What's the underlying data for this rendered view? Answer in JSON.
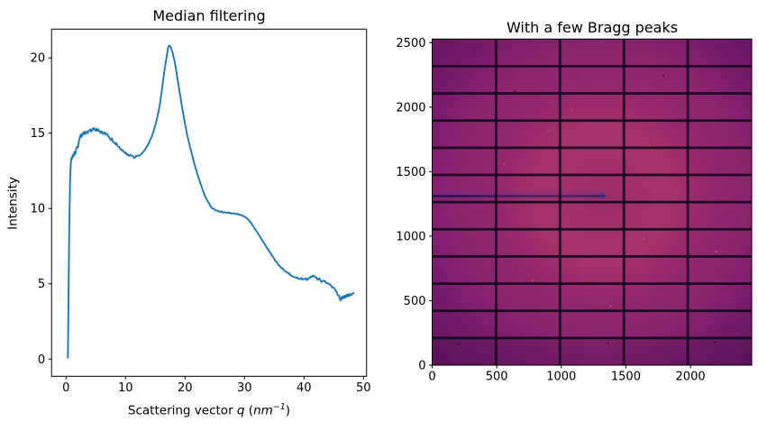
{
  "figure": {
    "background": "#ffffff"
  },
  "chart_data": [
    {
      "id": "median_filtering_curve",
      "type": "line",
      "title": "Median filtering",
      "ylabel": "Intensity",
      "xlabel_plain": "Scattering vector q (nm⁻¹)",
      "xlabel_parts": {
        "prefix": "Scattering vector ",
        "q": "q",
        "open": " (",
        "unit": "nm",
        "exp": "−1",
        "close": ")"
      },
      "xlim": [
        -2.44,
        50.52
      ],
      "ylim": [
        -1.14,
        21.91
      ],
      "xticks": [
        0,
        10,
        20,
        30,
        40,
        50
      ],
      "yticks": [
        0,
        5,
        10,
        15,
        20
      ],
      "line_color": "#1f77b4",
      "line_width": 1.9,
      "grid": false,
      "points": [
        [
          0.3,
          0.05
        ],
        [
          0.35,
          1.6
        ],
        [
          0.4,
          3.6
        ],
        [
          0.45,
          5.6
        ],
        [
          0.5,
          7.3
        ],
        [
          0.55,
          8.9
        ],
        [
          0.6,
          10.2
        ],
        [
          0.65,
          11.3
        ],
        [
          0.7,
          12.2
        ],
        [
          0.8,
          13.0
        ],
        [
          0.9,
          13.35
        ],
        [
          1.0,
          13.3
        ],
        [
          1.1,
          13.55
        ],
        [
          1.25,
          13.45
        ],
        [
          1.4,
          13.75
        ],
        [
          1.55,
          13.6
        ],
        [
          1.7,
          13.95
        ],
        [
          1.85,
          14.1
        ],
        [
          2.0,
          14.05
        ],
        [
          2.15,
          14.45
        ],
        [
          2.3,
          14.7
        ],
        [
          2.45,
          14.9
        ],
        [
          2.6,
          14.75
        ],
        [
          2.75,
          15.0
        ],
        [
          2.9,
          14.9
        ],
        [
          3.05,
          15.1
        ],
        [
          3.25,
          14.95
        ],
        [
          3.45,
          15.1
        ],
        [
          3.65,
          15.0
        ],
        [
          3.85,
          15.15
        ],
        [
          4.05,
          15.25
        ],
        [
          4.25,
          15.1
        ],
        [
          4.45,
          15.3
        ],
        [
          4.65,
          15.35
        ],
        [
          4.85,
          15.2
        ],
        [
          5.05,
          15.3
        ],
        [
          5.25,
          15.15
        ],
        [
          5.45,
          15.25
        ],
        [
          5.65,
          15.1
        ],
        [
          5.85,
          15.0
        ],
        [
          6.05,
          15.1
        ],
        [
          6.25,
          14.95
        ],
        [
          6.45,
          15.05
        ],
        [
          6.65,
          14.9
        ],
        [
          6.85,
          14.95
        ],
        [
          7.05,
          14.85
        ],
        [
          7.25,
          14.75
        ],
        [
          7.45,
          14.6
        ],
        [
          7.65,
          14.65
        ],
        [
          7.85,
          14.45
        ],
        [
          8.05,
          14.4
        ],
        [
          8.25,
          14.3
        ],
        [
          8.45,
          14.35
        ],
        [
          8.65,
          14.15
        ],
        [
          8.85,
          14.1
        ],
        [
          9.05,
          14.0
        ],
        [
          9.25,
          13.95
        ],
        [
          9.45,
          13.85
        ],
        [
          9.65,
          13.8
        ],
        [
          9.85,
          13.75
        ],
        [
          10.1,
          13.7
        ],
        [
          10.4,
          13.6
        ],
        [
          10.7,
          13.55
        ],
        [
          11.0,
          13.5
        ],
        [
          11.3,
          13.45
        ],
        [
          11.6,
          13.4
        ],
        [
          11.9,
          13.45
        ],
        [
          12.2,
          13.5
        ],
        [
          12.5,
          13.55
        ],
        [
          12.8,
          13.68
        ],
        [
          13.1,
          13.82
        ],
        [
          13.4,
          13.98
        ],
        [
          13.7,
          14.18
        ],
        [
          14.0,
          14.42
        ],
        [
          14.3,
          14.68
        ],
        [
          14.6,
          15.0
        ],
        [
          14.9,
          15.38
        ],
        [
          15.2,
          15.82
        ],
        [
          15.5,
          16.35
        ],
        [
          15.8,
          17.0
        ],
        [
          16.1,
          17.85
        ],
        [
          16.4,
          18.75
        ],
        [
          16.7,
          19.55
        ],
        [
          16.95,
          20.2
        ],
        [
          17.15,
          20.65
        ],
        [
          17.35,
          20.82
        ],
        [
          17.55,
          20.75
        ],
        [
          17.75,
          20.55
        ],
        [
          17.95,
          20.28
        ],
        [
          18.15,
          19.95
        ],
        [
          18.45,
          19.3
        ],
        [
          18.75,
          18.6
        ],
        [
          19.05,
          17.85
        ],
        [
          19.35,
          17.1
        ],
        [
          19.65,
          16.4
        ],
        [
          19.95,
          15.72
        ],
        [
          20.25,
          15.12
        ],
        [
          20.55,
          14.58
        ],
        [
          20.85,
          14.08
        ],
        [
          21.15,
          13.6
        ],
        [
          21.45,
          13.15
        ],
        [
          21.75,
          12.72
        ],
        [
          22.05,
          12.32
        ],
        [
          22.35,
          11.95
        ],
        [
          22.65,
          11.58
        ],
        [
          22.95,
          11.25
        ],
        [
          23.25,
          10.95
        ],
        [
          23.55,
          10.68
        ],
        [
          23.85,
          10.45
        ],
        [
          24.15,
          10.25
        ],
        [
          24.45,
          10.08
        ],
        [
          24.75,
          9.97
        ],
        [
          25.05,
          9.9
        ],
        [
          25.45,
          9.85
        ],
        [
          25.85,
          9.8
        ],
        [
          26.25,
          9.78
        ],
        [
          26.65,
          9.76
        ],
        [
          27.05,
          9.74
        ],
        [
          27.45,
          9.7
        ],
        [
          27.85,
          9.68
        ],
        [
          28.25,
          9.66
        ],
        [
          28.65,
          9.64
        ],
        [
          29.05,
          9.6
        ],
        [
          29.45,
          9.56
        ],
        [
          29.85,
          9.5
        ],
        [
          30.25,
          9.4
        ],
        [
          30.65,
          9.26
        ],
        [
          31.05,
          9.06
        ],
        [
          31.45,
          8.84
        ],
        [
          31.85,
          8.6
        ],
        [
          32.25,
          8.36
        ],
        [
          32.65,
          8.1
        ],
        [
          33.05,
          7.85
        ],
        [
          33.45,
          7.6
        ],
        [
          33.85,
          7.35
        ],
        [
          34.25,
          7.1
        ],
        [
          34.65,
          6.85
        ],
        [
          35.05,
          6.62
        ],
        [
          35.45,
          6.42
        ],
        [
          35.85,
          6.22
        ],
        [
          36.25,
          6.05
        ],
        [
          36.65,
          5.9
        ],
        [
          37.05,
          5.78
        ],
        [
          37.45,
          5.66
        ],
        [
          37.85,
          5.56
        ],
        [
          38.25,
          5.48
        ],
        [
          38.65,
          5.42
        ],
        [
          39.05,
          5.38
        ],
        [
          39.45,
          5.35
        ],
        [
          39.85,
          5.32
        ],
        [
          40.25,
          5.3
        ],
        [
          40.65,
          5.33
        ],
        [
          41.0,
          5.4
        ],
        [
          41.3,
          5.46
        ],
        [
          41.6,
          5.5
        ],
        [
          41.9,
          5.42
        ],
        [
          42.2,
          5.32
        ],
        [
          42.5,
          5.36
        ],
        [
          42.8,
          5.22
        ],
        [
          43.1,
          5.16
        ],
        [
          43.4,
          5.2
        ],
        [
          43.7,
          5.06
        ],
        [
          44.0,
          5.0
        ],
        [
          44.3,
          4.95
        ],
        [
          44.6,
          4.86
        ],
        [
          44.9,
          4.76
        ],
        [
          45.2,
          4.62
        ],
        [
          45.5,
          4.46
        ],
        [
          45.8,
          4.2
        ],
        [
          46.0,
          4.0
        ],
        [
          46.15,
          3.88
        ],
        [
          46.3,
          4.12
        ],
        [
          46.45,
          4.0
        ],
        [
          46.6,
          4.18
        ],
        [
          46.75,
          4.05
        ],
        [
          46.9,
          4.22
        ],
        [
          47.05,
          4.1
        ],
        [
          47.2,
          4.28
        ],
        [
          47.35,
          4.15
        ],
        [
          47.5,
          4.3
        ],
        [
          47.65,
          4.2
        ],
        [
          47.8,
          4.32
        ],
        [
          48.0,
          4.26
        ],
        [
          48.2,
          4.35
        ],
        [
          48.45,
          4.4
        ]
      ],
      "noise_segments": [
        {
          "from": 0.9,
          "to": 12.2,
          "amp": 0.09
        },
        {
          "from": 12.2,
          "to": 25.0,
          "amp": 0.035
        },
        {
          "from": 25.0,
          "to": 40.0,
          "amp": 0.05
        },
        {
          "from": 40.0,
          "to": 45.4,
          "amp": 0.09
        },
        {
          "from": 45.4,
          "to": 48.5,
          "amp": 0.13
        }
      ]
    },
    {
      "id": "detector_image",
      "type": "heatmap",
      "title": "With a few Bragg peaks",
      "xlim": [
        0,
        2474
      ],
      "ylim": [
        0,
        2528
      ],
      "xticks": [
        0,
        500,
        1000,
        1500,
        2000
      ],
      "yticks": [
        0,
        500,
        1000,
        1500,
        2000,
        2500
      ],
      "colormap": "magma-like",
      "colors": {
        "base": "#7E1D74",
        "bright": "#B13A66",
        "bright_soft": "#A53067",
        "vignette": "#2E063A",
        "module_gap": "#150A1E",
        "streak_core": "#241244",
        "streak_halo": "#5A35A0",
        "beam_dot": "#3B3AA5",
        "beam_dot_core": "#23227D",
        "hot_pixel": "#CF5A26",
        "dead_pixel": "#2A0836",
        "bottom_shade": "#1E0532"
      },
      "detector_modules": {
        "columns": 5,
        "rows": 12
      },
      "beam_center": [
        1330,
        1310
      ],
      "streak": {
        "y": 1310,
        "x_from": 0,
        "x_to": 1330
      },
      "bragg_peaks": [
        [
          1640,
          980
        ],
        [
          1270,
          840
        ],
        [
          1680,
          1700
        ],
        [
          900,
          1820
        ],
        [
          1380,
          460
        ],
        [
          780,
          660
        ],
        [
          1980,
          1300
        ],
        [
          560,
          1560
        ],
        [
          2200,
          880
        ],
        [
          1080,
          1980
        ]
      ],
      "dead_pixels": [
        [
          205,
          165
        ],
        [
          1360,
          170
        ],
        [
          2185,
          180
        ],
        [
          640,
          2120
        ],
        [
          1790,
          2240
        ]
      ]
    }
  ]
}
